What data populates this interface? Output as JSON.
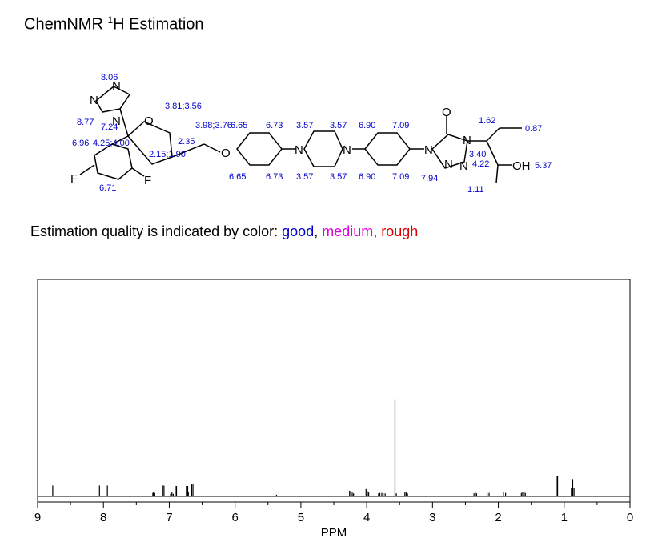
{
  "title": {
    "prefix": "ChemNMR ",
    "sup": "1",
    "rest": "H Estimation"
  },
  "quality": {
    "prefix": "Estimation quality is indicated by color: ",
    "good": "good",
    "sep1": ", ",
    "medium": "medium",
    "sep2": ", ",
    "rough": "rough",
    "colors": {
      "good": "#0000cc",
      "medium": "#dd00dd",
      "rough": "#e00000"
    }
  },
  "molecule": {
    "atoms": [
      "N",
      "N",
      "N",
      "O",
      "F",
      "F",
      "O",
      "N",
      "N",
      "N",
      "O",
      "N",
      "N",
      "N",
      "OH"
    ],
    "shift_labels": [
      "8.06",
      "8.77",
      "7.24",
      "6.96",
      "4.25;4.00",
      "6.71",
      "3.81;3.56",
      "3.98;3.76",
      "6.65",
      "2.35",
      "2.15;1.90",
      "6.65",
      "6.73",
      "6.73",
      "3.57",
      "3.57",
      "3.57",
      "3.57",
      "6.90",
      "6.90",
      "7.09",
      "7.09",
      "7.94",
      "1.62",
      "0.87",
      "3.40",
      "4.22",
      "5.37",
      "1.11"
    ]
  },
  "chart_data": {
    "type": "line",
    "xlabel": "PPM",
    "xlim": [
      9,
      0
    ],
    "x_reversed": true,
    "x_ticks": [
      "9",
      "8",
      "7",
      "6",
      "5",
      "4",
      "3",
      "2",
      "1",
      "0"
    ],
    "grid": false,
    "series": [
      {
        "peaks": [
          {
            "ppm": 8.77,
            "height": 0.05
          },
          {
            "ppm": 8.06,
            "height": 0.05
          },
          {
            "ppm": 7.94,
            "height": 0.05
          },
          {
            "ppm": 7.25,
            "height": 0.016
          },
          {
            "ppm": 7.24,
            "height": 0.022
          },
          {
            "ppm": 7.22,
            "height": 0.016
          },
          {
            "ppm": 7.1,
            "height": 0.05
          },
          {
            "ppm": 7.08,
            "height": 0.05
          },
          {
            "ppm": 6.98,
            "height": 0.012
          },
          {
            "ppm": 6.96,
            "height": 0.018
          },
          {
            "ppm": 6.94,
            "height": 0.012
          },
          {
            "ppm": 6.91,
            "height": 0.048
          },
          {
            "ppm": 6.89,
            "height": 0.048
          },
          {
            "ppm": 6.74,
            "height": 0.048
          },
          {
            "ppm": 6.72,
            "height": 0.048
          },
          {
            "ppm": 6.66,
            "height": 0.055
          },
          {
            "ppm": 6.64,
            "height": 0.055
          },
          {
            "ppm": 6.71,
            "height": 0.02
          },
          {
            "ppm": 5.37,
            "height": 0.008
          },
          {
            "ppm": 4.26,
            "height": 0.026
          },
          {
            "ppm": 4.24,
            "height": 0.026
          },
          {
            "ppm": 4.22,
            "height": 0.018
          },
          {
            "ppm": 4.2,
            "height": 0.014
          },
          {
            "ppm": 4.01,
            "height": 0.034
          },
          {
            "ppm": 3.99,
            "height": 0.024
          },
          {
            "ppm": 3.97,
            "height": 0.018
          },
          {
            "ppm": 3.82,
            "height": 0.014
          },
          {
            "ppm": 3.8,
            "height": 0.016
          },
          {
            "ppm": 3.77,
            "height": 0.016
          },
          {
            "ppm": 3.75,
            "height": 0.014
          },
          {
            "ppm": 3.72,
            "height": 0.014
          },
          {
            "ppm": 3.57,
            "height": 0.445
          },
          {
            "ppm": 3.55,
            "height": 0.014
          },
          {
            "ppm": 3.42,
            "height": 0.018
          },
          {
            "ppm": 3.4,
            "height": 0.018
          },
          {
            "ppm": 3.38,
            "height": 0.014
          },
          {
            "ppm": 2.37,
            "height": 0.014
          },
          {
            "ppm": 2.35,
            "height": 0.018
          },
          {
            "ppm": 2.33,
            "height": 0.014
          },
          {
            "ppm": 2.17,
            "height": 0.016
          },
          {
            "ppm": 2.14,
            "height": 0.016
          },
          {
            "ppm": 1.92,
            "height": 0.018
          },
          {
            "ppm": 1.89,
            "height": 0.016
          },
          {
            "ppm": 1.65,
            "height": 0.016
          },
          {
            "ppm": 1.63,
            "height": 0.022
          },
          {
            "ppm": 1.61,
            "height": 0.022
          },
          {
            "ppm": 1.59,
            "height": 0.016
          },
          {
            "ppm": 1.12,
            "height": 0.095
          },
          {
            "ppm": 1.1,
            "height": 0.095
          },
          {
            "ppm": 0.89,
            "height": 0.04
          },
          {
            "ppm": 0.87,
            "height": 0.08
          },
          {
            "ppm": 0.85,
            "height": 0.04
          }
        ]
      }
    ]
  }
}
